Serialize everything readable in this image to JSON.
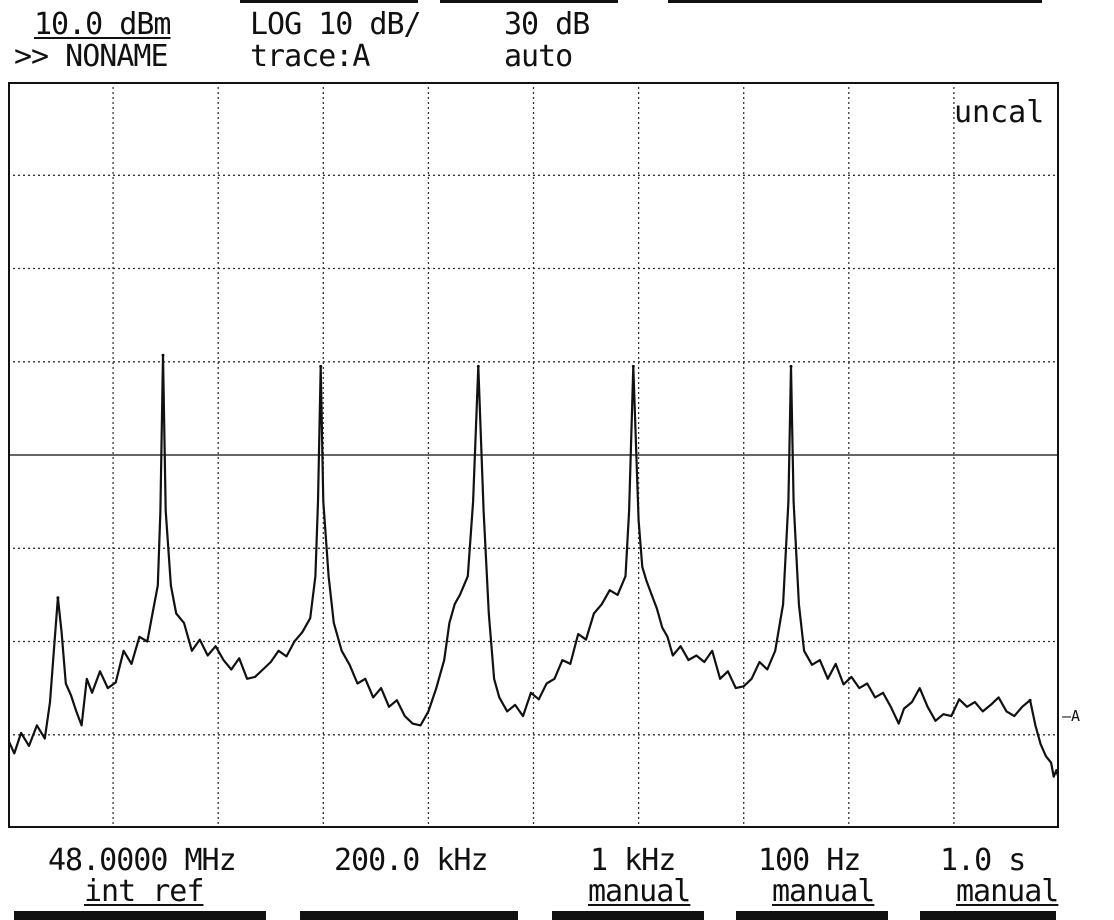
{
  "header": {
    "ref_level": "10.0 dBm",
    "trace_name": ">> NONAME",
    "scale_mode": "LOG 10 dB/",
    "trace_select": "trace:A",
    "attenuation": "30 dB",
    "attenuation_mode": "auto"
  },
  "status": {
    "uncal": "uncal"
  },
  "footer": {
    "center_freq": "48.0000 MHz",
    "center_freq_sub": "int ref",
    "span": "200.0 kHz",
    "rbw": "1 kHz",
    "rbw_mode": "manual",
    "vbw": "100 Hz",
    "vbw_mode": "manual",
    "sweep_time": "1.0 s",
    "sweep_mode": "manual"
  },
  "trace_marker": "A",
  "chart_data": {
    "type": "line",
    "title": "",
    "xlabel": "",
    "ylabel": "",
    "x_unit": "MHz",
    "y_unit": "dBm",
    "xlim": [
      47.9,
      48.1
    ],
    "ylim": [
      -70,
      10
    ],
    "x_divisions": 10,
    "y_divisions": 8,
    "grid": true,
    "peaks": [
      {
        "x": 47.9095,
        "y": -45.3
      },
      {
        "x": 47.9295,
        "y": -19.3
      },
      {
        "x": 47.9595,
        "y": -20.5
      },
      {
        "x": 47.9895,
        "y": -20.5
      },
      {
        "x": 48.019,
        "y": -20.5
      },
      {
        "x": 48.049,
        "y": -20.5
      },
      {
        "x": 48.0945,
        "y": -56.3
      }
    ],
    "series": [
      {
        "values": [
          [
            47.9,
            -60.5
          ],
          [
            47.9012,
            -62.0
          ],
          [
            47.9025,
            -59.8
          ],
          [
            47.904,
            -61.2
          ],
          [
            47.9055,
            -59.0
          ],
          [
            47.907,
            -60.4
          ],
          [
            47.908,
            -56.5
          ],
          [
            47.9088,
            -50.5
          ],
          [
            47.9095,
            -45.3
          ],
          [
            47.9102,
            -49.0
          ],
          [
            47.911,
            -54.5
          ],
          [
            47.912,
            -55.8
          ],
          [
            47.913,
            -57.5
          ],
          [
            47.914,
            -59.0
          ],
          [
            47.915,
            -54.0
          ],
          [
            47.916,
            -55.5
          ],
          [
            47.9175,
            -53.2
          ],
          [
            47.919,
            -55.0
          ],
          [
            47.9205,
            -54.4
          ],
          [
            47.922,
            -51.0
          ],
          [
            47.9235,
            -52.4
          ],
          [
            47.925,
            -49.5
          ],
          [
            47.9265,
            -50.0
          ],
          [
            47.9275,
            -47.0
          ],
          [
            47.9285,
            -44.0
          ],
          [
            47.929,
            -36.0
          ],
          [
            47.9295,
            -19.3
          ],
          [
            47.93,
            -36.0
          ],
          [
            47.931,
            -44.0
          ],
          [
            47.932,
            -47.0
          ],
          [
            47.9335,
            -48.0
          ],
          [
            47.935,
            -51.0
          ],
          [
            47.9365,
            -49.8
          ],
          [
            47.938,
            -51.5
          ],
          [
            47.9395,
            -50.5
          ],
          [
            47.941,
            -52.0
          ],
          [
            47.9425,
            -53.0
          ],
          [
            47.944,
            -51.8
          ],
          [
            47.9455,
            -54.0
          ],
          [
            47.947,
            -53.8
          ],
          [
            47.9485,
            -53.0
          ],
          [
            47.95,
            -52.2
          ],
          [
            47.9515,
            -51.0
          ],
          [
            47.953,
            -51.6
          ],
          [
            47.9545,
            -50.0
          ],
          [
            47.956,
            -49.0
          ],
          [
            47.9575,
            -47.5
          ],
          [
            47.9585,
            -43.0
          ],
          [
            47.959,
            -35.0
          ],
          [
            47.9595,
            -20.5
          ],
          [
            47.96,
            -35.0
          ],
          [
            47.961,
            -43.0
          ],
          [
            47.962,
            -48.0
          ],
          [
            47.9635,
            -51.0
          ],
          [
            47.965,
            -52.5
          ],
          [
            47.9665,
            -54.5
          ],
          [
            47.968,
            -54.0
          ],
          [
            47.9695,
            -56.0
          ],
          [
            47.971,
            -55.0
          ],
          [
            47.9725,
            -57.0
          ],
          [
            47.974,
            -56.3
          ],
          [
            47.9755,
            -58.0
          ],
          [
            47.977,
            -58.8
          ],
          [
            47.9785,
            -59.0
          ],
          [
            47.98,
            -57.5
          ],
          [
            47.9815,
            -55.0
          ],
          [
            47.983,
            -52.0
          ],
          [
            47.984,
            -48.0
          ],
          [
            47.985,
            -46.0
          ],
          [
            47.986,
            -45.0
          ],
          [
            47.9875,
            -43.0
          ],
          [
            47.9885,
            -35.0
          ],
          [
            47.9895,
            -20.5
          ],
          [
            47.9905,
            -36.0
          ],
          [
            47.9915,
            -47.0
          ],
          [
            47.9925,
            -54.0
          ],
          [
            47.9935,
            -56.0
          ],
          [
            47.995,
            -57.5
          ],
          [
            47.9965,
            -56.8
          ],
          [
            47.998,
            -58.0
          ],
          [
            47.9995,
            -55.5
          ],
          [
            48.001,
            -56.2
          ],
          [
            48.0025,
            -54.5
          ],
          [
            48.004,
            -54.0
          ],
          [
            48.0055,
            -52.0
          ],
          [
            48.007,
            -52.4
          ],
          [
            48.0085,
            -49.2
          ],
          [
            48.01,
            -49.8
          ],
          [
            48.0115,
            -47.0
          ],
          [
            48.013,
            -46.0
          ],
          [
            48.0145,
            -44.5
          ],
          [
            48.016,
            -45.0
          ],
          [
            48.0175,
            -43.0
          ],
          [
            48.0182,
            -36.0
          ],
          [
            48.019,
            -20.5
          ],
          [
            48.02,
            -37.0
          ],
          [
            48.0207,
            -42.0
          ],
          [
            48.0215,
            -43.5
          ],
          [
            48.0225,
            -45.0
          ],
          [
            48.0235,
            -46.5
          ],
          [
            48.0245,
            -48.5
          ],
          [
            48.0255,
            -49.5
          ],
          [
            48.0265,
            -51.5
          ],
          [
            48.028,
            -50.5
          ],
          [
            48.0295,
            -52.0
          ],
          [
            48.031,
            -51.5
          ],
          [
            48.0325,
            -52.2
          ],
          [
            48.034,
            -51.0
          ],
          [
            48.0355,
            -54.0
          ],
          [
            48.037,
            -53.2
          ],
          [
            48.0385,
            -55.0
          ],
          [
            48.04,
            -54.8
          ],
          [
            48.0415,
            -54.0
          ],
          [
            48.043,
            -52.2
          ],
          [
            48.0445,
            -53.0
          ],
          [
            48.046,
            -51.0
          ],
          [
            48.0475,
            -46.0
          ],
          [
            48.0485,
            -35.0
          ],
          [
            48.049,
            -20.5
          ],
          [
            48.0495,
            -35.0
          ],
          [
            48.0505,
            -46.0
          ],
          [
            48.0515,
            -51.0
          ],
          [
            48.053,
            -52.5
          ],
          [
            48.0545,
            -52.0
          ],
          [
            48.056,
            -54.0
          ],
          [
            48.0575,
            -52.4
          ],
          [
            48.059,
            -54.6
          ],
          [
            48.0605,
            -53.8
          ],
          [
            48.062,
            -55.0
          ],
          [
            48.0635,
            -54.5
          ],
          [
            48.065,
            -56.0
          ],
          [
            48.0665,
            -55.5
          ],
          [
            48.068,
            -57.0
          ],
          [
            48.0695,
            -58.8
          ],
          [
            48.0705,
            -57.2
          ],
          [
            48.072,
            -56.5
          ],
          [
            48.0735,
            -55.0
          ],
          [
            48.075,
            -57.0
          ],
          [
            48.0765,
            -58.5
          ],
          [
            48.078,
            -57.8
          ],
          [
            48.0795,
            -58.0
          ],
          [
            48.081,
            -56.2
          ],
          [
            48.0825,
            -57.0
          ],
          [
            48.084,
            -56.5
          ],
          [
            48.0855,
            -57.5
          ],
          [
            48.087,
            -56.8
          ],
          [
            48.0885,
            -56.0
          ],
          [
            48.09,
            -57.5
          ],
          [
            48.0915,
            -58.0
          ],
          [
            48.093,
            -57.0
          ],
          [
            48.0945,
            -56.3
          ],
          [
            48.0955,
            -59.0
          ],
          [
            48.0965,
            -61.0
          ],
          [
            48.0975,
            -62.3
          ],
          [
            48.0985,
            -63.0
          ],
          [
            48.099,
            -64.5
          ],
          [
            48.0995,
            -63.8
          ],
          [
            48.1,
            -64.8
          ]
        ]
      }
    ]
  }
}
